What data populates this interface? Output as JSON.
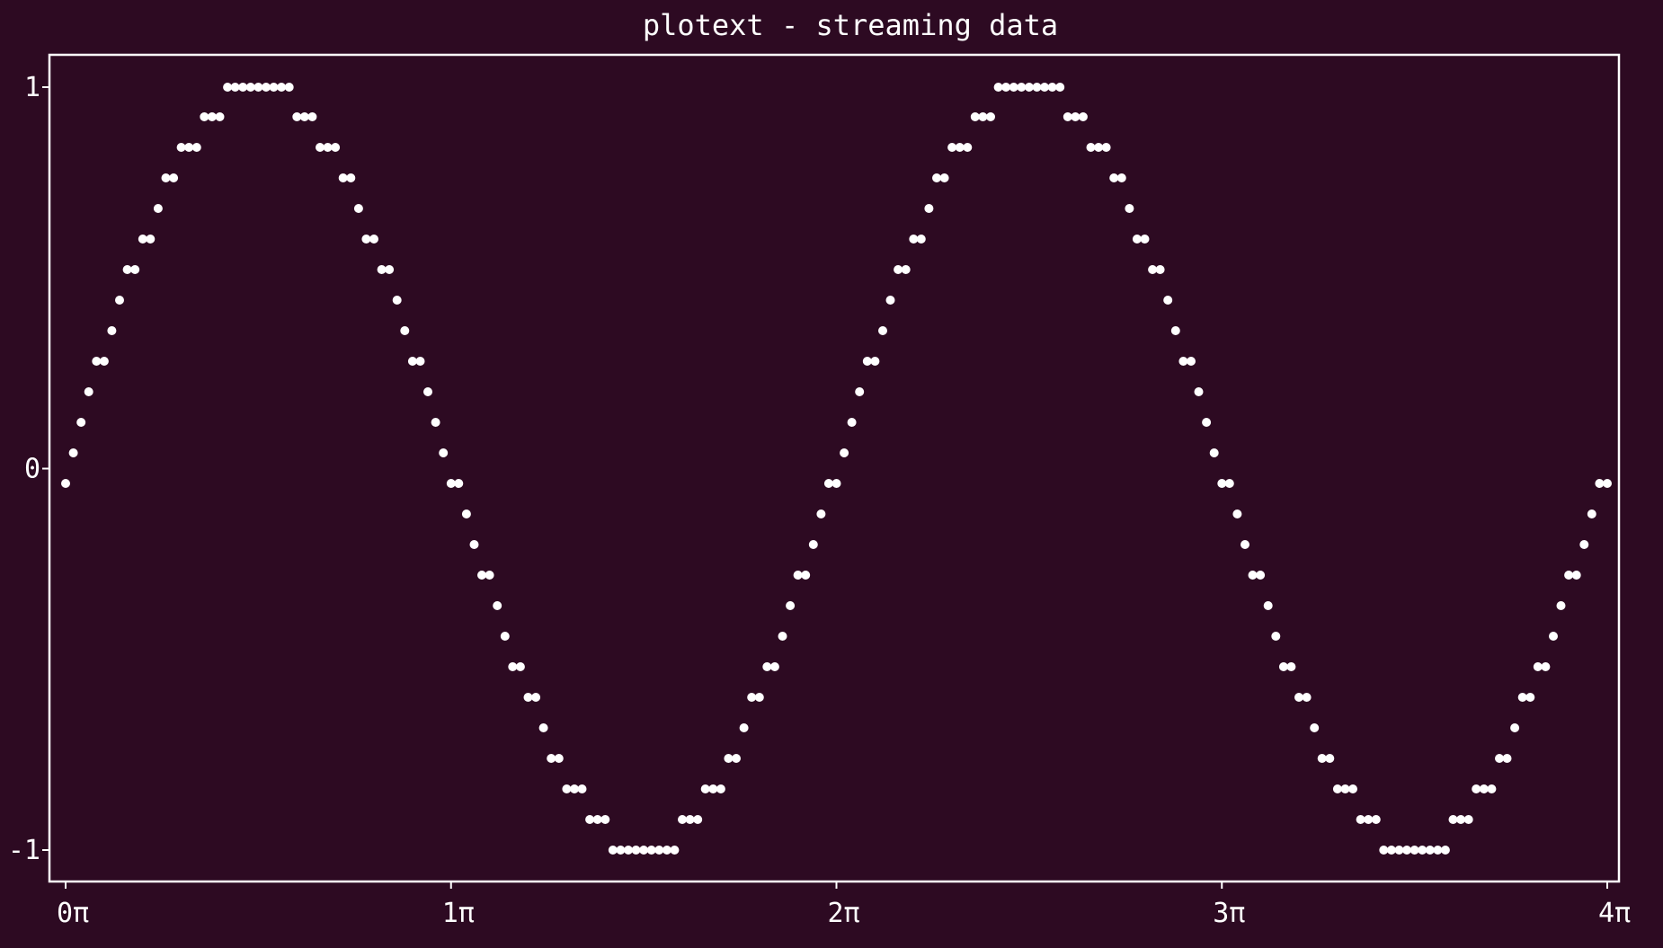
{
  "colors": {
    "background": "#2d0a22",
    "foreground": "#ffffff"
  },
  "chart_data": {
    "type": "scatter",
    "title": "plotext - streaming data",
    "xlabel": "",
    "ylabel": "",
    "xlim": [
      0,
      4
    ],
    "ylim": [
      -1,
      1
    ],
    "x_unit": "π",
    "x_ticks": [
      0,
      1,
      2,
      3,
      4
    ],
    "x_tick_labels": [
      "0π",
      "1π",
      "2π",
      "3π",
      "4π"
    ],
    "y_ticks": [
      -1,
      0,
      1
    ],
    "y_tick_labels": [
      "-1",
      "0",
      "1"
    ],
    "grid": false,
    "legend": "none",
    "series": [
      {
        "marker": "dot",
        "function": "sin(x)",
        "x_start": 0,
        "x_end": 4,
        "x_step": 0.02
      }
    ]
  }
}
